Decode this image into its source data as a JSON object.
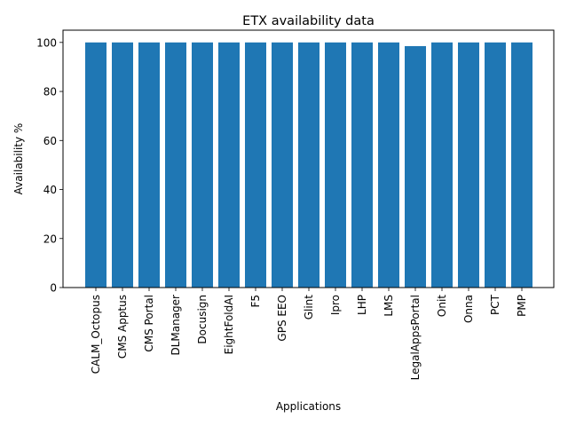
{
  "chart_data": {
    "type": "bar",
    "title": "ETX availability data",
    "xlabel": "Applications",
    "ylabel": "Availability %",
    "categories": [
      "CALM_Octopus",
      "CMS Apptus",
      "CMS Portal",
      "DLManager",
      "Docusign",
      "EightFoldAI",
      "F5",
      "GPS EEO",
      "Glint",
      "Ipro",
      "LHP",
      "LMS",
      "LegalAppsPortal",
      "Onit",
      "Onna",
      "PCT",
      "PMP"
    ],
    "values": [
      100,
      100,
      100,
      100,
      100,
      100,
      100,
      100,
      100,
      100,
      100,
      100,
      98.5,
      100,
      100,
      100,
      100
    ],
    "ylim": [
      0,
      105
    ],
    "yticks": [
      0,
      20,
      40,
      60,
      80,
      100
    ],
    "bar_color": "#1f77b4",
    "grid": false,
    "legend": "none"
  }
}
